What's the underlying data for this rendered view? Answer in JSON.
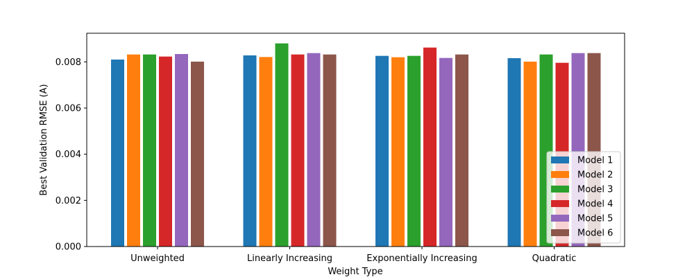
{
  "chart_data": {
    "type": "bar",
    "title": "",
    "xlabel": "Weight Type",
    "ylabel": "Best Validation RMSE (A)",
    "categories": [
      "Unweighted",
      "Linearly Increasing",
      "Exponentially Increasing",
      "Quadratic"
    ],
    "series": [
      {
        "name": "Model 1",
        "color": "#1f77b4",
        "values": [
          0.0081,
          0.00828,
          0.00826,
          0.00816
        ]
      },
      {
        "name": "Model 2",
        "color": "#ff7f0e",
        "values": [
          0.00832,
          0.00821,
          0.0082,
          0.00801
        ]
      },
      {
        "name": "Model 3",
        "color": "#2ca02c",
        "values": [
          0.00832,
          0.0088,
          0.00826,
          0.00832
        ]
      },
      {
        "name": "Model 4",
        "color": "#d62728",
        "values": [
          0.00823,
          0.00832,
          0.00862,
          0.00796
        ]
      },
      {
        "name": "Model 5",
        "color": "#9467bd",
        "values": [
          0.00834,
          0.00838,
          0.00817,
          0.00838
        ]
      },
      {
        "name": "Model 6",
        "color": "#8c564b",
        "values": [
          0.00801,
          0.00832,
          0.00832,
          0.00838
        ]
      }
    ],
    "ylim": [
      0,
      0.00924
    ],
    "yticks": [
      "0.000",
      "0.002",
      "0.004",
      "0.006",
      "0.008"
    ],
    "ytick_values": [
      0,
      0.002,
      0.004,
      0.006,
      0.008
    ],
    "legend_position": "lower-right",
    "grid": false
  }
}
